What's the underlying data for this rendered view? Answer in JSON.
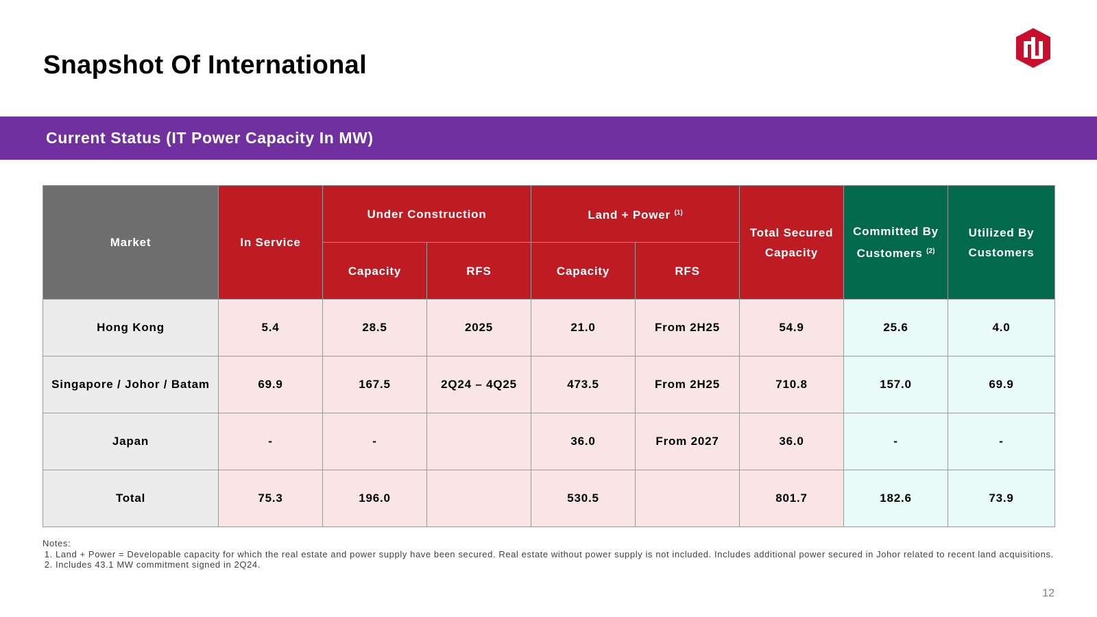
{
  "slide": {
    "title": "Snapshot Of International",
    "banner": "Current Status (IT Power Capacity In MW)",
    "page_number": "12",
    "logo": {
      "icon": "company-logo",
      "color": "#c8102e"
    },
    "colors": {
      "banner": "#7030a0",
      "header_red": "#be1b22",
      "header_green": "#016a4c",
      "header_grey": "#6e6e6e"
    }
  },
  "table": {
    "headers": {
      "market": "Market",
      "in_service": "In Service",
      "under_construction": "Under Construction",
      "land_power": "Land + Power",
      "land_power_note": "(1)",
      "total_secured": "Total Secured Capacity",
      "committed": "Committed By Customers",
      "committed_note": "(2)",
      "utilized": "Utilized By Customers",
      "uc_capacity": "Capacity",
      "uc_rfs": "RFS",
      "lp_capacity": "Capacity",
      "lp_rfs": "RFS"
    },
    "rows": [
      {
        "market": "Hong Kong",
        "in_service": "5.4",
        "uc_capacity": "28.5",
        "uc_rfs": "2025",
        "lp_capacity": "21.0",
        "lp_rfs": "From 2H25",
        "total_secured": "54.9",
        "committed": "25.6",
        "utilized": "4.0"
      },
      {
        "market": "Singapore / Johor / Batam",
        "in_service": "69.9",
        "uc_capacity": "167.5",
        "uc_rfs": "2Q24 – 4Q25",
        "lp_capacity": "473.5",
        "lp_rfs": "From 2H25",
        "total_secured": "710.8",
        "committed": "157.0",
        "utilized": "69.9"
      },
      {
        "market": "Japan",
        "in_service": "-",
        "uc_capacity": "-",
        "uc_rfs": "",
        "lp_capacity": "36.0",
        "lp_rfs": "From 2027",
        "total_secured": "36.0",
        "committed": "-",
        "utilized": "-"
      },
      {
        "market": "Total",
        "in_service": "75.3",
        "uc_capacity": "196.0",
        "uc_rfs": "",
        "lp_capacity": "530.5",
        "lp_rfs": "",
        "total_secured": "801.7",
        "committed": "182.6",
        "utilized": "73.9"
      }
    ]
  },
  "notes": {
    "label": "Notes:",
    "items": [
      "Land + Power = Developable capacity for which the real estate and power supply have been secured. Real estate without power supply is not included. Includes additional power secured in Johor related to recent land acquisitions.",
      "Includes 43.1 MW commitment signed in 2Q24."
    ]
  }
}
